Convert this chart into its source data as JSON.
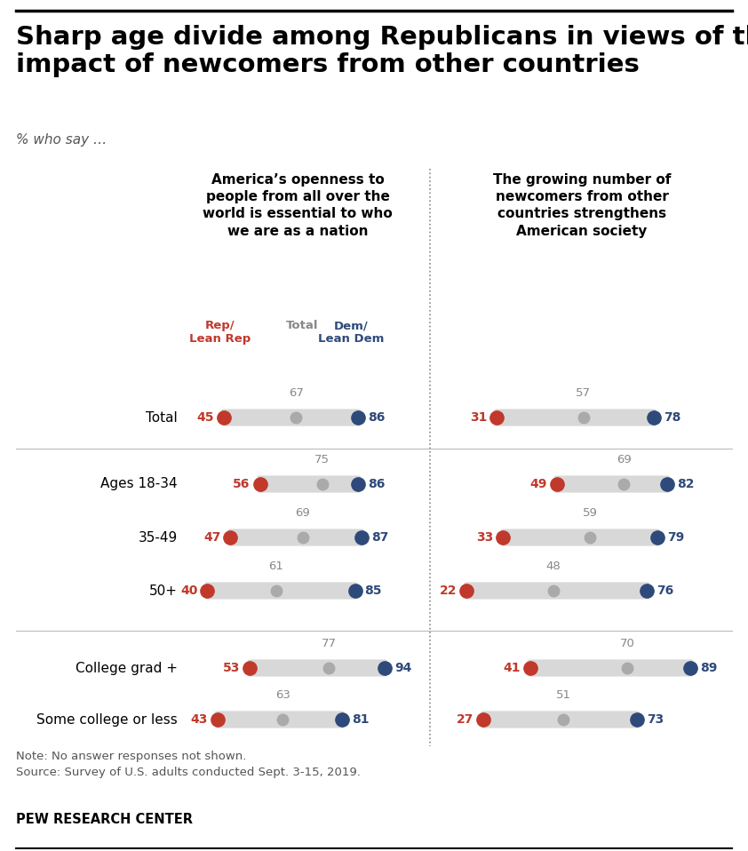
{
  "title": "Sharp age divide among Republicans in views of the\nimpact of newcomers from other countries",
  "subtitle": "% who say …",
  "col1_header": "America’s openness to\npeople from all over the\nworld is essential to who\nwe are as a nation",
  "col2_header": "The growing number of\nnewcomers from other\ncountries strengthens\nAmerican society",
  "legend_rep": "Rep/\nLean Rep",
  "legend_total": "Total",
  "legend_dem": "Dem/\nLean Dem",
  "row_labels": [
    "Total",
    "Ages 18-34",
    "35-49",
    "50+",
    "College grad +",
    "Some college or less"
  ],
  "col1_data": [
    {
      "rep": 45,
      "total": 67,
      "dem": 86
    },
    {
      "rep": 56,
      "total": 75,
      "dem": 86
    },
    {
      "rep": 47,
      "total": 69,
      "dem": 87
    },
    {
      "rep": 40,
      "total": 61,
      "dem": 85
    },
    {
      "rep": 53,
      "total": 77,
      "dem": 94
    },
    {
      "rep": 43,
      "total": 63,
      "dem": 81
    }
  ],
  "col2_data": [
    {
      "rep": 31,
      "total": 57,
      "dem": 78
    },
    {
      "rep": 49,
      "total": 69,
      "dem": 82
    },
    {
      "rep": 33,
      "total": 59,
      "dem": 79
    },
    {
      "rep": 22,
      "total": 48,
      "dem": 76
    },
    {
      "rep": 41,
      "total": 70,
      "dem": 89
    },
    {
      "rep": 27,
      "total": 51,
      "dem": 73
    }
  ],
  "color_rep": "#c0392b",
  "color_total": "#aaaaaa",
  "color_dem": "#2e4a7a",
  "color_bar": "#d8d8d8",
  "note_text": "Note: No answer responses not shown.\nSource: Survey of U.S. adults conducted Sept. 3-15, 2019.",
  "footer": "PEW RESEARCH CENTER",
  "top_line_color": "#000000",
  "bottom_line_color": "#000000",
  "sep_line_color": "#bbbbbb",
  "div_line_color": "#999999"
}
